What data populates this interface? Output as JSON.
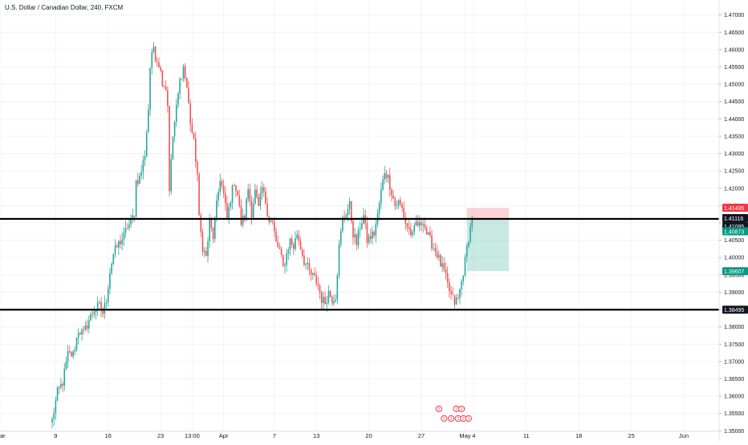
{
  "header": {
    "title": "U.S. Dollar / Canadian Dollar, 240, FXCM"
  },
  "chart_data": {
    "type": "candlestick",
    "title": "U.S. Dollar / Canadian Dollar, 240, FXCM",
    "ylim": [
      1.351,
      1.472
    ],
    "y_ticks": [
      "1.47000",
      "1.46500",
      "1.46000",
      "1.45500",
      "1.45000",
      "1.44500",
      "1.44000",
      "1.43500",
      "1.43000",
      "1.42500",
      "1.42000",
      "1.41500",
      "1.41000",
      "1.40500",
      "1.40000",
      "1.39500",
      "1.39000",
      "1.38500",
      "1.38000",
      "1.37500",
      "1.37000",
      "1.36500",
      "1.36000",
      "1.35500",
      "1.35000"
    ],
    "x_ticks": [
      {
        "label": "ar",
        "i": -34
      },
      {
        "label": "9",
        "i": 2
      },
      {
        "label": "16",
        "i": 32
      },
      {
        "label": "23",
        "i": 62
      },
      {
        "label": "13:00",
        "i": 80
      },
      {
        "label": "Apr",
        "i": 98
      },
      {
        "label": "7",
        "i": 127
      },
      {
        "label": "13",
        "i": 151
      },
      {
        "label": "20",
        "i": 181
      },
      {
        "label": "27",
        "i": 211
      },
      {
        "label": "May",
        "i": 236
      },
      {
        "label": "4",
        "i": 241
      },
      {
        "label": "11",
        "i": 271
      },
      {
        "label": "18",
        "i": 301
      },
      {
        "label": "25",
        "i": 331
      },
      {
        "label": "Jun",
        "i": 361
      }
    ],
    "price_labels": [
      {
        "value": "1.41435",
        "color": "#f23645"
      },
      {
        "value": "1.41116",
        "color": "#131722"
      },
      {
        "value": "1.41095",
        "color": "#131722"
      },
      {
        "value": "1.40873",
        "color": "#089981"
      },
      {
        "value": "1.39607",
        "color": "#089981"
      },
      {
        "value": "1.38495",
        "color": "#131722"
      }
    ],
    "horizontal_lines": [
      1.41116,
      1.38495
    ],
    "position_box": {
      "entry": 1.41095,
      "stop": 1.41435,
      "target": 1.39607,
      "start_i": 237,
      "end_i": 261
    },
    "colors": {
      "up": "#26a69a",
      "down": "#ef5350",
      "line": "#000000"
    },
    "anchors": [
      [
        0,
        1.353
      ],
      [
        3,
        1.361
      ],
      [
        6,
        1.364
      ],
      [
        9,
        1.372
      ],
      [
        12,
        1.372
      ],
      [
        15,
        1.379
      ],
      [
        18,
        1.378
      ],
      [
        21,
        1.382
      ],
      [
        24,
        1.385
      ],
      [
        27,
        1.386
      ],
      [
        29,
        1.384
      ],
      [
        31,
        1.388
      ],
      [
        33,
        1.396
      ],
      [
        35,
        1.401
      ],
      [
        38,
        1.404
      ],
      [
        41,
        1.406
      ],
      [
        43,
        1.409
      ],
      [
        45,
        1.41
      ],
      [
        47,
        1.413
      ],
      [
        48,
        1.422
      ],
      [
        50,
        1.423
      ],
      [
        51,
        1.425
      ],
      [
        53,
        1.43
      ],
      [
        55,
        1.443
      ],
      [
        56,
        1.455
      ],
      [
        58,
        1.461
      ],
      [
        59,
        1.458
      ],
      [
        61,
        1.456
      ],
      [
        63,
        1.451
      ],
      [
        65,
        1.449
      ],
      [
        66,
        1.444
      ],
      [
        67,
        1.42
      ],
      [
        69,
        1.435
      ],
      [
        71,
        1.443
      ],
      [
        73,
        1.451
      ],
      [
        75,
        1.455
      ],
      [
        77,
        1.449
      ],
      [
        79,
        1.439
      ],
      [
        81,
        1.433
      ],
      [
        83,
        1.424
      ],
      [
        84,
        1.411
      ],
      [
        86,
        1.403
      ],
      [
        88,
        1.4
      ],
      [
        89,
        1.405
      ],
      [
        90,
        1.41
      ],
      [
        92,
        1.406
      ],
      [
        94,
        1.415
      ],
      [
        96,
        1.423
      ],
      [
        98,
        1.418
      ],
      [
        100,
        1.411
      ],
      [
        102,
        1.417
      ],
      [
        104,
        1.422
      ],
      [
        106,
        1.418
      ],
      [
        108,
        1.41
      ],
      [
        110,
        1.412
      ],
      [
        112,
        1.42
      ],
      [
        114,
        1.413
      ],
      [
        116,
        1.419
      ],
      [
        118,
        1.414
      ],
      [
        120,
        1.42
      ],
      [
        122,
        1.416
      ],
      [
        124,
        1.411
      ],
      [
        126,
        1.41
      ],
      [
        128,
        1.404
      ],
      [
        130,
        1.402
      ],
      [
        132,
        1.397
      ],
      [
        134,
        1.401
      ],
      [
        136,
        1.405
      ],
      [
        138,
        1.403
      ],
      [
        140,
        1.407
      ],
      [
        142,
        1.403
      ],
      [
        144,
        1.399
      ],
      [
        146,
        1.397
      ],
      [
        148,
        1.395
      ],
      [
        150,
        1.394
      ],
      [
        152,
        1.392
      ],
      [
        154,
        1.388
      ],
      [
        156,
        1.387
      ],
      [
        158,
        1.39
      ],
      [
        160,
        1.388
      ],
      [
        162,
        1.389
      ],
      [
        164,
        1.403
      ],
      [
        166,
        1.411
      ],
      [
        168,
        1.413
      ],
      [
        170,
        1.415
      ],
      [
        172,
        1.407
      ],
      [
        174,
        1.404
      ],
      [
        176,
        1.409
      ],
      [
        178,
        1.412
      ],
      [
        180,
        1.405
      ],
      [
        182,
        1.406
      ],
      [
        184,
        1.407
      ],
      [
        186,
        1.412
      ],
      [
        188,
        1.419
      ],
      [
        190,
        1.425
      ],
      [
        192,
        1.423
      ],
      [
        194,
        1.419
      ],
      [
        196,
        1.415
      ],
      [
        198,
        1.416
      ],
      [
        200,
        1.414
      ],
      [
        202,
        1.41
      ],
      [
        204,
        1.408
      ],
      [
        206,
        1.406
      ],
      [
        208,
        1.41
      ],
      [
        210,
        1.409
      ],
      [
        212,
        1.411
      ],
      [
        214,
        1.407
      ],
      [
        216,
        1.405
      ],
      [
        218,
        1.403
      ],
      [
        220,
        1.401
      ],
      [
        222,
        1.398
      ],
      [
        224,
        1.396
      ],
      [
        226,
        1.392
      ],
      [
        228,
        1.389
      ],
      [
        230,
        1.387
      ],
      [
        232,
        1.388
      ],
      [
        234,
        1.393
      ],
      [
        236,
        1.399
      ],
      [
        238,
        1.406
      ],
      [
        240,
        1.411
      ]
    ],
    "event_markers": [
      {
        "i": 221,
        "label": "2",
        "row": 1
      },
      {
        "i": 224,
        "label": "2",
        "row": 2
      },
      {
        "i": 228,
        "label": "2",
        "row": 2
      },
      {
        "i": 231,
        "label": "2",
        "row": 1
      },
      {
        "i": 232,
        "label": "2",
        "row": 2
      },
      {
        "i": 234,
        "label": "3",
        "row": 1
      },
      {
        "i": 235,
        "label": "2",
        "row": 2
      },
      {
        "i": 238,
        "label": "2",
        "row": 2
      }
    ]
  }
}
